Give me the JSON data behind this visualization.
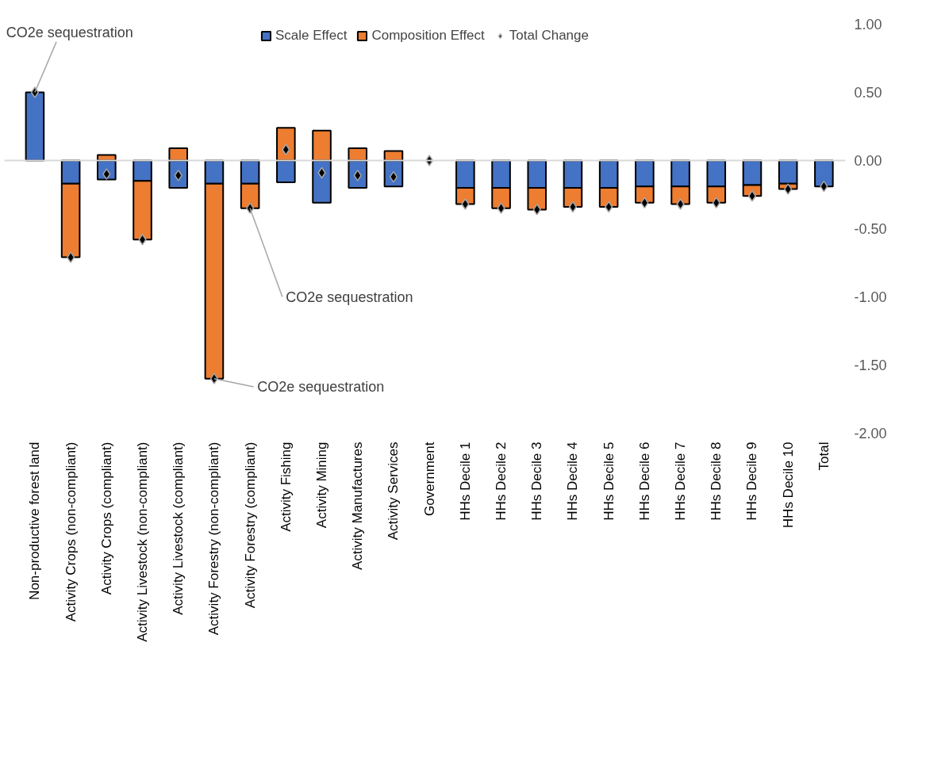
{
  "chart_data": {
    "type": "bar",
    "stacked": true,
    "categories": [
      "Non-productive forest land",
      "Activity Crops (non-compliant)",
      "Activity Crops (compliant)",
      "Activity Livestock (non-compliant)",
      "Activity Livestock (compliant)",
      "Activity Forestry (non-compliant)",
      "Activity Forestry (compliant)",
      "Activity Fishing",
      "Activity Mining",
      "Activity Manufactures",
      "Activity Services",
      "Government",
      "HHs Decile 1",
      "HHs Decile 2",
      "HHs Decile 3",
      "HHs Decile 4",
      "HHs Decile 5",
      "HHs Decile 6",
      "HHs Decile 7",
      "HHs Decile 8",
      "HHs Decile 9",
      "HHs Decile 10",
      "Total"
    ],
    "series": [
      {
        "name": "Scale Effect",
        "color": "#4472c4",
        "values": [
          0.5,
          -0.17,
          -0.14,
          -0.15,
          -0.2,
          -0.17,
          -0.17,
          -0.16,
          -0.31,
          -0.2,
          -0.19,
          0.0,
          -0.2,
          -0.2,
          -0.2,
          -0.2,
          -0.2,
          -0.19,
          -0.19,
          -0.19,
          -0.18,
          -0.17,
          -0.19
        ]
      },
      {
        "name": "Composition Effect",
        "color": "#ed7d31",
        "values": [
          0.0,
          -0.54,
          0.04,
          -0.43,
          0.09,
          -1.43,
          -0.18,
          0.24,
          0.22,
          0.09,
          0.07,
          0.0,
          -0.12,
          -0.15,
          -0.16,
          -0.14,
          -0.14,
          -0.12,
          -0.13,
          -0.12,
          -0.08,
          -0.04,
          0.0
        ]
      },
      {
        "name": "Total Change",
        "type": "scatter",
        "marker": "diamond",
        "color": "#000000",
        "values": [
          0.5,
          -0.71,
          -0.1,
          -0.58,
          -0.11,
          -1.6,
          -0.35,
          0.08,
          -0.09,
          -0.11,
          -0.12,
          0.0,
          -0.32,
          -0.35,
          -0.36,
          -0.34,
          -0.34,
          -0.31,
          -0.32,
          -0.31,
          -0.26,
          -0.21,
          -0.19
        ]
      }
    ],
    "ylim": [
      -2.0,
      1.0
    ],
    "yticks": [
      {
        "value": -2,
        "label": "-2.00"
      },
      {
        "value": -1.5,
        "label": "-1.50"
      },
      {
        "value": -1,
        "label": "-1.00"
      },
      {
        "value": -0.5,
        "label": "-0.50"
      },
      {
        "value": 0,
        "label": "0.00"
      },
      {
        "value": 0.5,
        "label": "0.50"
      },
      {
        "value": 1,
        "label": "1.00"
      }
    ],
    "annotations": [
      {
        "text": "CO2e sequestration",
        "x": "Non-productive forest land",
        "y": 0.5
      },
      {
        "text": "CO2e sequestration",
        "x": "Activity Forestry (compliant)",
        "y": -0.35
      },
      {
        "text": "CO2e sequestration",
        "x": "Activity Forestry (non-compliant)",
        "y": -1.6
      }
    ],
    "ref_lines": [
      {
        "axis": "y",
        "value": 0,
        "color": "#d9d9d9"
      }
    ],
    "legend": "top",
    "grid": false
  }
}
